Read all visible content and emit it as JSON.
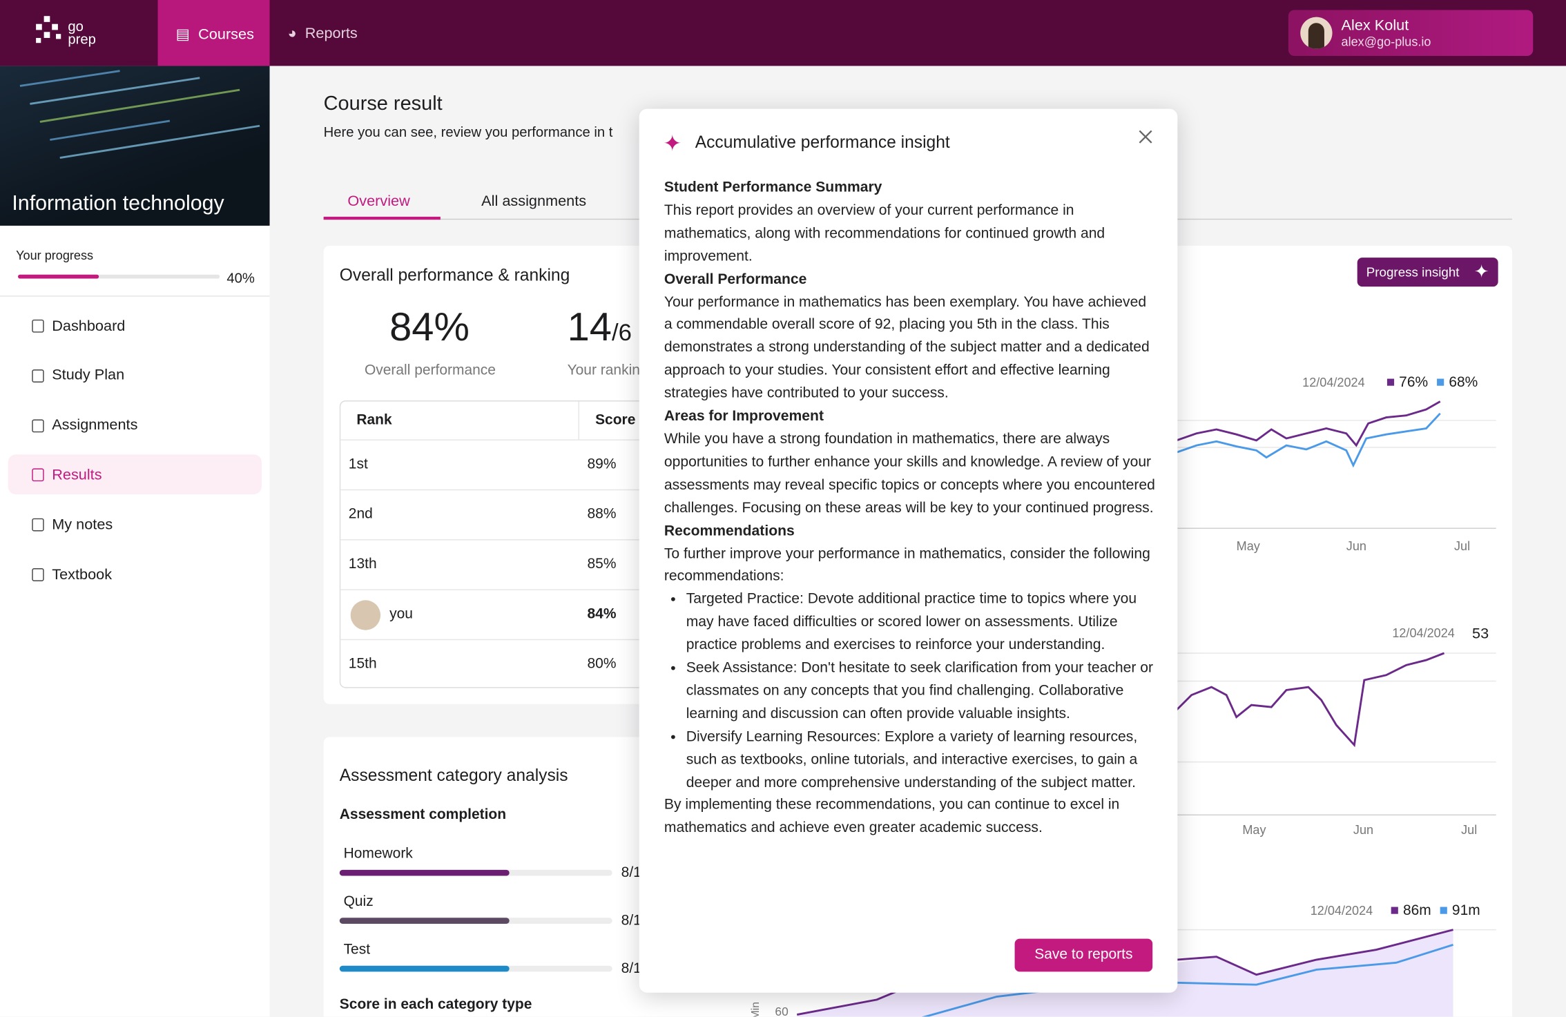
{
  "nav": {
    "logo_top": "go",
    "logo_bottom": "prep",
    "tabs": [
      "Courses",
      "Reports"
    ],
    "user_name": "Alex Kolut",
    "user_email": "alex@go-plus.io"
  },
  "sidebar": {
    "course": "Information technology",
    "progress_label": "Your progress",
    "progress": {
      "value": 40,
      "label": "40%"
    },
    "menu": [
      "Dashboard",
      "Study Plan",
      "Assignments",
      "Results",
      "My notes",
      "Textbook"
    ]
  },
  "main": {
    "title": "Course result",
    "subtitle": "Here you can see, review you performance in t",
    "tabs": [
      "Overview",
      "All assignments"
    ],
    "ranking": {
      "title": "Overall performance & ranking",
      "performance": "84%",
      "performance_label": "Overall performance",
      "rank": "14",
      "rank_total": "/6",
      "rank_label": "Your rankin",
      "headers": [
        "Rank",
        "Score"
      ],
      "rows": [
        [
          "1st",
          "89%"
        ],
        [
          "2nd",
          "88%"
        ],
        [
          "13th",
          "85%"
        ],
        [
          "you",
          "84%"
        ],
        [
          "15th",
          "80%"
        ]
      ]
    },
    "assessment": {
      "title": "Assessment category analysis",
      "subtitle": "Assessment completion",
      "items": [
        [
          "Homework",
          "8/1"
        ],
        [
          "Quiz",
          "8/1"
        ],
        [
          "Test",
          "8/1"
        ]
      ],
      "footer": "Score in each category type"
    },
    "insight_button": "Progress insight",
    "charts": [
      {
        "date": "12/04/2024",
        "legend": [
          "76%",
          "68%"
        ],
        "x": [
          "May",
          "Jun",
          "Jul"
        ]
      },
      {
        "date": "12/04/2024",
        "legend": [
          "53"
        ],
        "x": [
          "May",
          "Jun",
          "Jul"
        ]
      },
      {
        "date": "12/04/2024",
        "legend": [
          "86m",
          "91m"
        ],
        "y": [
          "60"
        ],
        "axis": "Min"
      }
    ]
  },
  "modal": {
    "title": "Accumulative performance insight",
    "sections": [
      {
        "heading": "Student Performance Summary",
        "text": "This report provides an overview of your current performance in mathematics, along with recommendations for continued growth and improvement."
      },
      {
        "heading": "Overall Performance",
        "text": "Your performance in mathematics has been exemplary. You have achieved a commendable overall score of 92, placing you 5th in the class. This demonstrates a strong understanding of the subject matter and a dedicated approach to your studies. Your consistent effort and effective learning strategies have contributed to your success."
      },
      {
        "heading": "Areas for Improvement",
        "text": "While you have a strong foundation in mathematics, there are always opportunities to further enhance your skills and knowledge. A review of your assessments may reveal specific topics or concepts where you encountered challenges. Focusing on these areas will be key to your continued progress."
      },
      {
        "heading": "Recommendations",
        "text": "To further improve your performance in mathematics, consider the following recommendations:"
      }
    ],
    "bullets": [
      "Targeted Practice: Devote additional practice time to topics where you may have faced difficulties or scored lower on assessments. Utilize practice problems and exercises to reinforce your understanding.",
      "Seek Assistance: Don't hesitate to seek clarification from your teacher or classmates on any concepts that you find challenging. Collaborative learning and discussion can often provide valuable insights.",
      "Diversify Learning Resources: Explore a variety of learning resources, such as textbooks, online tutorials, and interactive exercises, to gain a deeper and more comprehensive understanding of the subject matter."
    ],
    "closing": "By implementing these recommendations, you can continue to excel in mathematics and achieve even greater academic success.",
    "button": "Save to reports"
  }
}
